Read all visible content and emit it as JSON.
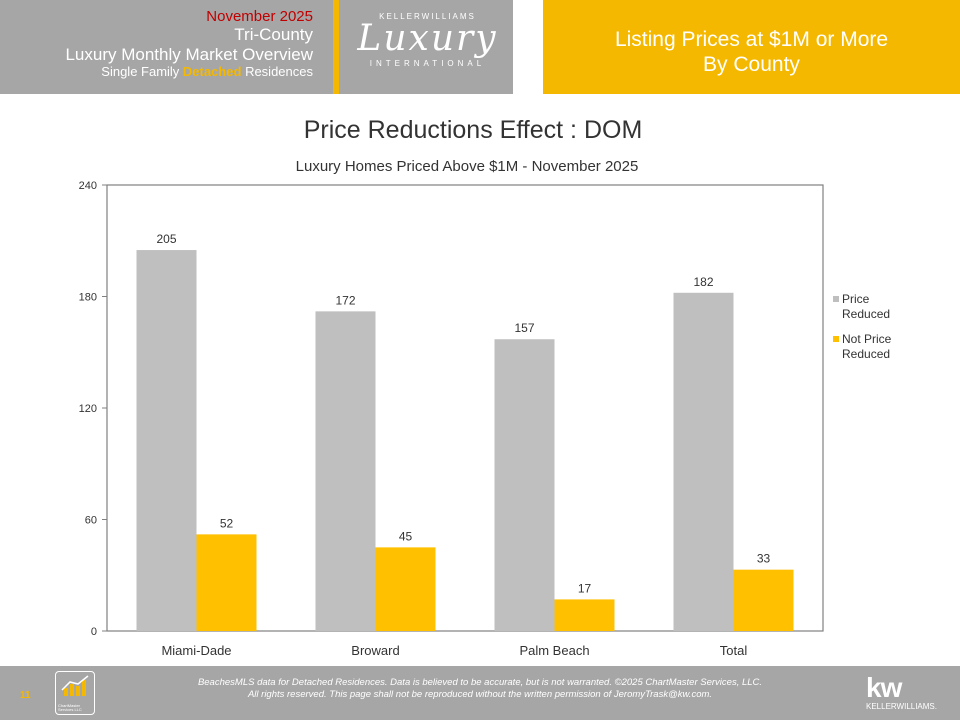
{
  "header": {
    "date": "November 2025",
    "region": "Tri-County",
    "title": "Luxury Monthly Market Overview",
    "subtitle_pre": "Single Family ",
    "subtitle_highlight": "Detached",
    "subtitle_post": " Residences",
    "logo_top": "KELLERWILLIAMS",
    "logo_main": "Luxury",
    "logo_bottom": "INTERNATIONAL",
    "right_line1": "Listing Prices at $1M or More",
    "right_line2": "By County"
  },
  "chart_data": {
    "type": "bar",
    "title": "Price Reductions Effect : DOM",
    "subtitle": "Luxury Homes Priced Above $1M - November 2025",
    "categories": [
      "Miami-Dade",
      "Broward",
      "Palm Beach",
      "Total"
    ],
    "series": [
      {
        "name": "Price Reduced",
        "legend_lines": [
          "Price",
          "Reduced"
        ],
        "color": "#bfbfbf",
        "values": [
          205,
          172,
          157,
          182
        ]
      },
      {
        "name": "Not Price Reduced",
        "legend_lines": [
          "Not Price",
          "Reduced"
        ],
        "color": "#ffc000",
        "values": [
          52,
          45,
          17,
          33
        ]
      }
    ],
    "yticks": [
      0,
      60,
      120,
      180,
      240
    ],
    "ylim": [
      0,
      240
    ],
    "legend_position": "right",
    "grid": false
  },
  "footer": {
    "page": "11",
    "cm_logo": "ChartMaster Services LLC",
    "line1": "BeachesMLS data for Detached Residences.  Data is believed to be accurate, but is not warranted.  ©2025 ChartMaster Services, LLC.",
    "line2": "All rights reserved. This page shall not be reproduced without the written permission of JeromyTrask@kw.com.",
    "kw_big": "kw",
    "kw_small": "KELLERWILLIAMS."
  }
}
